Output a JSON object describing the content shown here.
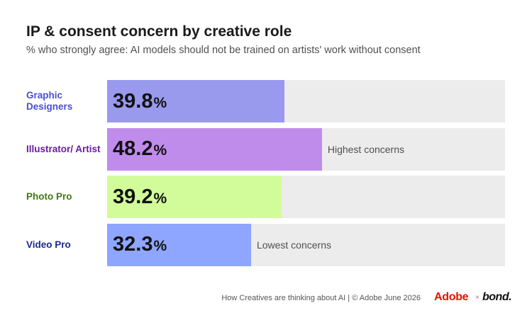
{
  "chart_data": {
    "type": "bar",
    "orientation": "horizontal",
    "title": "IP & consent concern by creative role",
    "subtitle": "% who strongly agree: AI models should not be trained on artists' work without consent",
    "xlim": [
      0,
      100
    ],
    "value_suffix": "%",
    "categories": [
      "Graphic Designers",
      "Illustrator/ Artist",
      "Photo Pro",
      "Video Pro"
    ],
    "values": [
      39.8,
      48.2,
      39.2,
      32.3
    ],
    "label_colors": [
      "#4a4fd0",
      "#6a1aa8",
      "#3f7a12",
      "#1b2a8c"
    ],
    "bar_colors": [
      "#9999ee",
      "#c08cec",
      "#d2fc9a",
      "#8ea6ff"
    ],
    "annotations": [
      "",
      "Highest concerns",
      "",
      "Lowest concerns"
    ],
    "track_color": "#ececec",
    "grid": false,
    "legend": "none"
  },
  "footer": {
    "source": "How Creatives are thinking about AI  |  © Adobe June 2026",
    "logo_adobe": "Adobe",
    "logo_sep": "×",
    "logo_partner": "bond."
  }
}
